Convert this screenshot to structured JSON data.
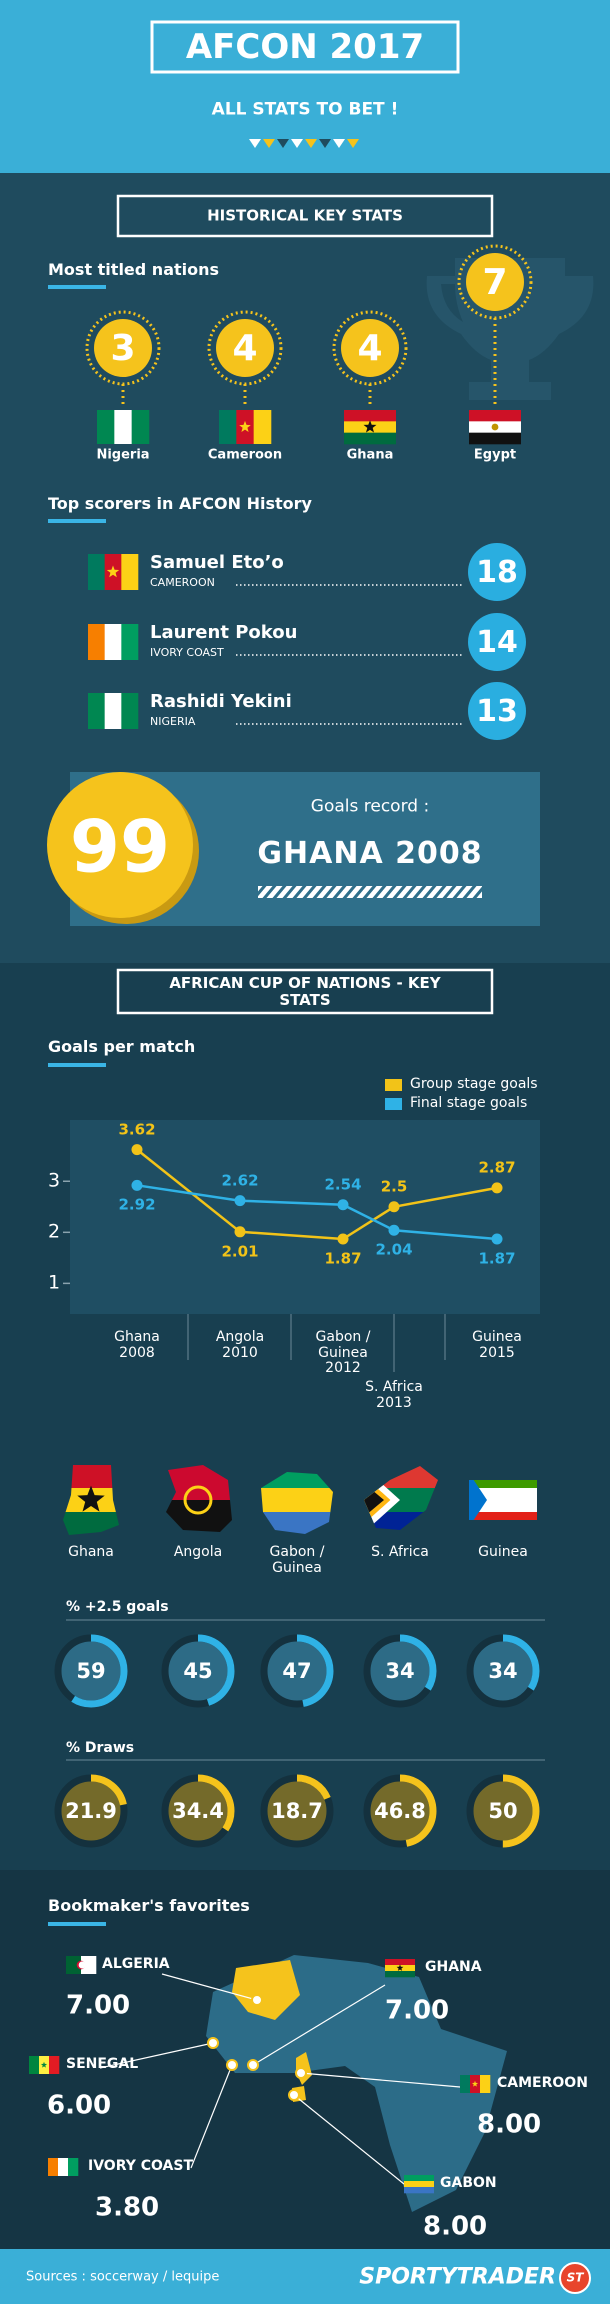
{
  "header": {
    "title": "AFCON 2017",
    "subtitle": "ALL STATS TO BET !"
  },
  "historical": {
    "title": "HISTORICAL KEY STATS",
    "titled_heading": "Most titled nations",
    "titled": [
      {
        "name": "Nigeria",
        "titles": 3
      },
      {
        "name": "Cameroon",
        "titles": 4
      },
      {
        "name": "Ghana",
        "titles": 4
      },
      {
        "name": "Egypt",
        "titles": 7
      }
    ],
    "scorers_heading": "Top scorers in AFCON History",
    "scorers": [
      {
        "name": "Samuel Eto’o",
        "country": "CAMEROON",
        "goals": 18
      },
      {
        "name": "Laurent Pokou",
        "country": "IVORY COAST",
        "goals": 14
      },
      {
        "name": "Rashidi Yekini",
        "country": "NIGERIA",
        "goals": 13
      }
    ],
    "record": {
      "value": 99,
      "label": "Goals record :",
      "team": "GHANA 2008"
    }
  },
  "key_stats": {
    "title": "AFRICAN CUP OF NATIONS - KEY STATS"
  },
  "chart_data": {
    "type": "line",
    "title": "Goals per match",
    "categories": [
      "Ghana\n2008",
      "Angola\n2010",
      "Gabon /\nGuinea\n2012",
      "S. Africa\n2013",
      "Guinea\n2015"
    ],
    "series": [
      {
        "name": "Group stage goals",
        "color": "#f2c318",
        "values": [
          3.62,
          2.01,
          1.87,
          2.5,
          2.87
        ]
      },
      {
        "name": "Final stage goals",
        "color": "#2fb2e6",
        "values": [
          2.92,
          2.62,
          2.54,
          2.04,
          1.87
        ]
      }
    ],
    "ylim": [
      0.4,
      4.2
    ],
    "yticks": [
      1,
      2,
      3
    ]
  },
  "hosts": {
    "names": [
      "Ghana",
      "Angola",
      "Gabon /\nGuinea",
      "S. Africa",
      "Guinea"
    ],
    "over25_heading": "% +2.5 goals",
    "over25": [
      59,
      45,
      47,
      34,
      34
    ],
    "draws_heading": "% Draws",
    "draws": [
      21.9,
      34.4,
      18.7,
      46.8,
      50
    ]
  },
  "bookmakers": {
    "title": "Bookmaker's favorites",
    "teams": [
      {
        "name": "ALGERIA",
        "odds": "7.00"
      },
      {
        "name": "GHANA",
        "odds": "7.00"
      },
      {
        "name": "SENEGAL",
        "odds": "6.00"
      },
      {
        "name": "CAMEROON",
        "odds": "8.00"
      },
      {
        "name": "IVORY COAST",
        "odds": "3.80"
      },
      {
        "name": "GABON",
        "odds": "8.00"
      }
    ]
  },
  "footer": {
    "sources": "Sources : soccerway / lequipe",
    "brand": "SPORTYTRADER",
    "badge": "ST"
  }
}
